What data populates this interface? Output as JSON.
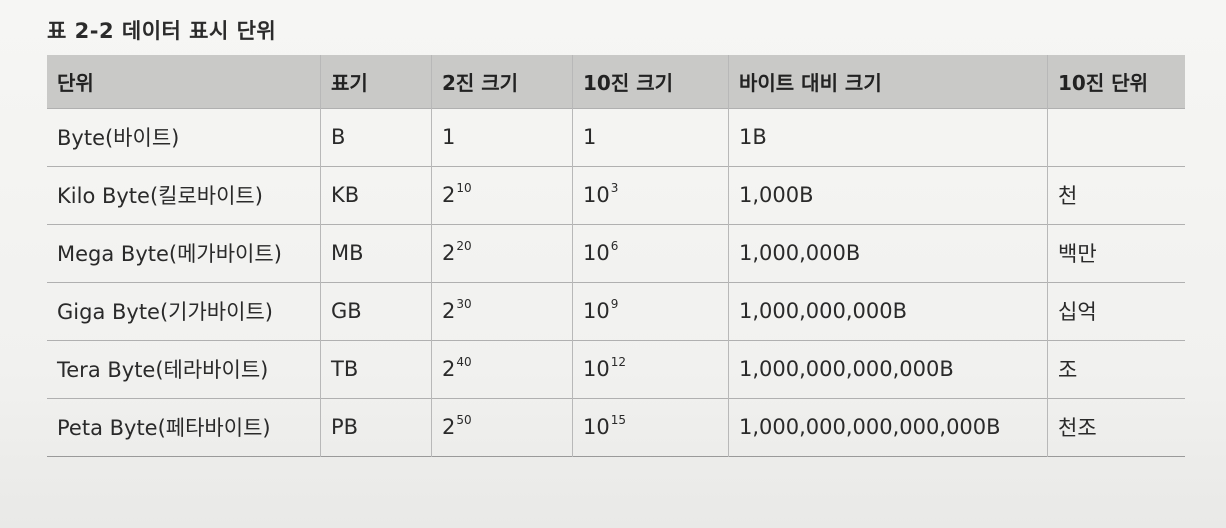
{
  "caption": "표 2-2 데이터 표시 단위",
  "headers": [
    "단위",
    "표기",
    "2진 크기",
    "10진 크기",
    "바이트 대비 크기",
    "10진 단위"
  ],
  "rows": [
    {
      "unit": "Byte(바이트)",
      "symbol": "B",
      "binary": {
        "base": "1",
        "exp": ""
      },
      "decimal": {
        "base": "1",
        "exp": ""
      },
      "bytes": "1B",
      "korean": ""
    },
    {
      "unit": "Kilo Byte(킬로바이트)",
      "symbol": "KB",
      "binary": {
        "base": "2",
        "exp": "10"
      },
      "decimal": {
        "base": "10",
        "exp": "3"
      },
      "bytes": "1,000B",
      "korean": "천"
    },
    {
      "unit": "Mega Byte(메가바이트)",
      "symbol": "MB",
      "binary": {
        "base": "2",
        "exp": "20"
      },
      "decimal": {
        "base": "10",
        "exp": "6"
      },
      "bytes": "1,000,000B",
      "korean": "백만"
    },
    {
      "unit": "Giga Byte(기가바이트)",
      "symbol": "GB",
      "binary": {
        "base": "2",
        "exp": "30"
      },
      "decimal": {
        "base": "10",
        "exp": "9"
      },
      "bytes": "1,000,000,000B",
      "korean": "십억"
    },
    {
      "unit": "Tera Byte(테라바이트)",
      "symbol": "TB",
      "binary": {
        "base": "2",
        "exp": "40"
      },
      "decimal": {
        "base": "10",
        "exp": "12"
      },
      "bytes": "1,000,000,000,000B",
      "korean": "조"
    },
    {
      "unit": "Peta Byte(페타바이트)",
      "symbol": "PB",
      "binary": {
        "base": "2",
        "exp": "50"
      },
      "decimal": {
        "base": "10",
        "exp": "15"
      },
      "bytes": "1,000,000,000,000,000B",
      "korean": "천조"
    }
  ]
}
